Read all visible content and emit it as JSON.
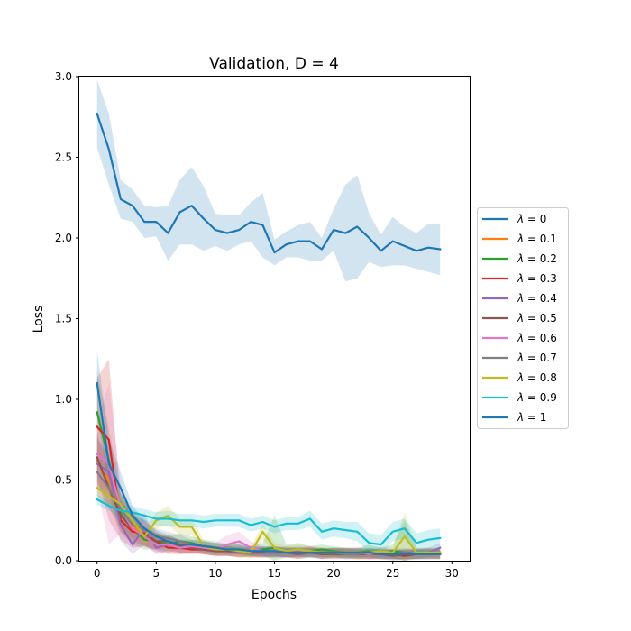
{
  "chart_data": {
    "type": "line",
    "title": "Validation, D = 4",
    "xlabel": "Epochs",
    "ylabel": "Loss",
    "xlim": [
      -1.5,
      31.5
    ],
    "ylim": [
      0,
      3.0
    ],
    "xticks": [
      0,
      5,
      10,
      15,
      20,
      25,
      30
    ],
    "yticks": [
      0.0,
      0.5,
      1.0,
      1.5,
      2.0,
      2.5,
      3.0
    ],
    "xtick_labels": [
      "0",
      "5",
      "10",
      "15",
      "20",
      "25",
      "30"
    ],
    "ytick_labels": [
      "0.0",
      "0.5",
      "1.0",
      "1.5",
      "2.0",
      "2.5",
      "3.0"
    ],
    "legend_position": "center-right, outside plot",
    "legend_prefix": "λ",
    "x": [
      0,
      1,
      2,
      3,
      4,
      5,
      6,
      7,
      8,
      9,
      10,
      11,
      12,
      13,
      14,
      15,
      16,
      17,
      18,
      19,
      20,
      21,
      22,
      23,
      24,
      25,
      26,
      27,
      28,
      29
    ],
    "series": [
      {
        "name": "λ = 0",
        "legend_value": "0",
        "color": "#1f77b4",
        "values": [
          2.77,
          2.55,
          2.24,
          2.2,
          2.1,
          2.1,
          2.03,
          2.16,
          2.2,
          2.12,
          2.05,
          2.03,
          2.05,
          2.1,
          2.08,
          1.91,
          1.96,
          1.98,
          1.98,
          1.93,
          2.05,
          2.03,
          2.07,
          2.0,
          1.92,
          1.98,
          1.95,
          1.92,
          1.94,
          1.93
        ],
        "band": [
          0.21,
          0.22,
          0.12,
          0.1,
          0.1,
          0.09,
          0.17,
          0.2,
          0.24,
          0.2,
          0.1,
          0.11,
          0.09,
          0.12,
          0.2,
          0.08,
          0.08,
          0.1,
          0.12,
          0.07,
          0.13,
          0.3,
          0.32,
          0.15,
          0.1,
          0.15,
          0.12,
          0.11,
          0.15,
          0.16
        ]
      },
      {
        "name": "λ = 0.1",
        "legend_value": "0.1",
        "color": "#ff7f0e",
        "values": [
          0.62,
          0.5,
          0.3,
          0.22,
          0.15,
          0.12,
          0.1,
          0.09,
          0.08,
          0.07,
          0.06,
          0.06,
          0.05,
          0.05,
          0.05,
          0.05,
          0.05,
          0.04,
          0.05,
          0.05,
          0.04,
          0.05,
          0.04,
          0.04,
          0.04,
          0.04,
          0.04,
          0.04,
          0.04,
          0.04
        ],
        "band": [
          0.15,
          0.12,
          0.1,
          0.08,
          0.06,
          0.05,
          0.04,
          0.04,
          0.03,
          0.03,
          0.03,
          0.03,
          0.03,
          0.03,
          0.03,
          0.03,
          0.03,
          0.03,
          0.03,
          0.03,
          0.03,
          0.03,
          0.03,
          0.03,
          0.03,
          0.03,
          0.03,
          0.03,
          0.03,
          0.03
        ]
      },
      {
        "name": "λ = 0.2",
        "legend_value": "0.2",
        "color": "#2ca02c",
        "values": [
          0.92,
          0.62,
          0.3,
          0.2,
          0.13,
          0.12,
          0.1,
          0.12,
          0.11,
          0.09,
          0.08,
          0.07,
          0.07,
          0.06,
          0.07,
          0.08,
          0.06,
          0.07,
          0.06,
          0.07,
          0.06,
          0.05,
          0.05,
          0.06,
          0.05,
          0.06,
          0.05,
          0.05,
          0.05,
          0.05
        ],
        "band": [
          0.25,
          0.2,
          0.12,
          0.1,
          0.06,
          0.05,
          0.05,
          0.05,
          0.04,
          0.04,
          0.04,
          0.03,
          0.03,
          0.03,
          0.04,
          0.2,
          0.04,
          0.04,
          0.03,
          0.03,
          0.03,
          0.03,
          0.03,
          0.04,
          0.03,
          0.04,
          0.2,
          0.03,
          0.03,
          0.03
        ]
      },
      {
        "name": "λ = 0.3",
        "legend_value": "0.3",
        "color": "#d62728",
        "values": [
          0.83,
          0.75,
          0.25,
          0.18,
          0.17,
          0.12,
          0.08,
          0.08,
          0.07,
          0.07,
          0.06,
          0.06,
          0.05,
          0.05,
          0.05,
          0.06,
          0.05,
          0.05,
          0.06,
          0.04,
          0.05,
          0.05,
          0.04,
          0.04,
          0.04,
          0.04,
          0.03,
          0.04,
          0.05,
          0.04
        ],
        "band": [
          0.3,
          0.5,
          0.12,
          0.1,
          0.08,
          0.06,
          0.04,
          0.04,
          0.03,
          0.03,
          0.03,
          0.03,
          0.03,
          0.03,
          0.03,
          0.03,
          0.03,
          0.03,
          0.03,
          0.03,
          0.03,
          0.03,
          0.03,
          0.03,
          0.03,
          0.03,
          0.03,
          0.03,
          0.03,
          0.03
        ]
      },
      {
        "name": "λ = 0.4",
        "legend_value": "0.4",
        "color": "#9467bd",
        "values": [
          0.6,
          0.55,
          0.22,
          0.1,
          0.2,
          0.08,
          0.1,
          0.09,
          0.08,
          0.07,
          0.06,
          0.06,
          0.05,
          0.06,
          0.05,
          0.05,
          0.05,
          0.06,
          0.05,
          0.04,
          0.05,
          0.04,
          0.05,
          0.04,
          0.05,
          0.04,
          0.05,
          0.04,
          0.05,
          0.08
        ],
        "band": [
          0.15,
          0.12,
          0.1,
          0.06,
          0.1,
          0.04,
          0.04,
          0.04,
          0.03,
          0.03,
          0.03,
          0.03,
          0.03,
          0.03,
          0.03,
          0.03,
          0.03,
          0.03,
          0.03,
          0.03,
          0.03,
          0.03,
          0.03,
          0.03,
          0.03,
          0.03,
          0.03,
          0.03,
          0.03,
          0.03
        ]
      },
      {
        "name": "λ = 0.5",
        "legend_value": "0.5",
        "color": "#8c564b",
        "values": [
          0.64,
          0.45,
          0.28,
          0.2,
          0.15,
          0.12,
          0.12,
          0.09,
          0.08,
          0.07,
          0.06,
          0.06,
          0.06,
          0.05,
          0.05,
          0.05,
          0.05,
          0.04,
          0.05,
          0.04,
          0.04,
          0.04,
          0.04,
          0.04,
          0.04,
          0.03,
          0.04,
          0.04,
          0.04,
          0.05
        ],
        "band": [
          0.15,
          0.12,
          0.1,
          0.08,
          0.06,
          0.05,
          0.04,
          0.04,
          0.03,
          0.03,
          0.03,
          0.03,
          0.03,
          0.03,
          0.03,
          0.03,
          0.03,
          0.03,
          0.03,
          0.03,
          0.03,
          0.03,
          0.03,
          0.03,
          0.03,
          0.03,
          0.03,
          0.03,
          0.03,
          0.03
        ]
      },
      {
        "name": "λ = 0.6",
        "legend_value": "0.6",
        "color": "#e377c2",
        "values": [
          0.66,
          0.6,
          0.32,
          0.2,
          0.15,
          0.1,
          0.1,
          0.08,
          0.09,
          0.08,
          0.07,
          0.1,
          0.12,
          0.08,
          0.06,
          0.06,
          0.05,
          0.05,
          0.06,
          0.05,
          0.05,
          0.05,
          0.05,
          0.04,
          0.05,
          0.04,
          0.04,
          0.05,
          0.04,
          0.04
        ],
        "band": [
          0.2,
          0.5,
          0.15,
          0.1,
          0.06,
          0.05,
          0.04,
          0.04,
          0.04,
          0.04,
          0.04,
          0.06,
          0.06,
          0.04,
          0.03,
          0.03,
          0.03,
          0.03,
          0.03,
          0.03,
          0.03,
          0.03,
          0.03,
          0.03,
          0.03,
          0.03,
          0.03,
          0.03,
          0.03,
          0.03
        ]
      },
      {
        "name": "λ = 0.7",
        "legend_value": "0.7",
        "color": "#7f7f7f",
        "values": [
          0.55,
          0.45,
          0.32,
          0.22,
          0.2,
          0.15,
          0.14,
          0.12,
          0.1,
          0.09,
          0.08,
          0.07,
          0.07,
          0.06,
          0.06,
          0.05,
          0.06,
          0.05,
          0.05,
          0.05,
          0.05,
          0.04,
          0.04,
          0.05,
          0.04,
          0.04,
          0.04,
          0.04,
          0.04,
          0.04
        ],
        "band": [
          0.15,
          0.12,
          0.1,
          0.08,
          0.06,
          0.05,
          0.04,
          0.04,
          0.03,
          0.03,
          0.03,
          0.03,
          0.03,
          0.03,
          0.03,
          0.03,
          0.03,
          0.03,
          0.03,
          0.03,
          0.03,
          0.03,
          0.03,
          0.03,
          0.03,
          0.03,
          0.03,
          0.03,
          0.03,
          0.03
        ]
      },
      {
        "name": "λ = 0.8",
        "legend_value": "0.8",
        "color": "#bcbd22",
        "values": [
          0.45,
          0.4,
          0.35,
          0.25,
          0.15,
          0.25,
          0.28,
          0.21,
          0.21,
          0.09,
          0.07,
          0.07,
          0.06,
          0.05,
          0.18,
          0.08,
          0.06,
          0.07,
          0.06,
          0.05,
          0.05,
          0.05,
          0.05,
          0.05,
          0.06,
          0.05,
          0.15,
          0.05,
          0.05,
          0.05
        ],
        "band": [
          0.05,
          0.05,
          0.05,
          0.06,
          0.05,
          0.05,
          0.06,
          0.05,
          0.05,
          0.04,
          0.03,
          0.03,
          0.03,
          0.03,
          0.05,
          0.03,
          0.03,
          0.03,
          0.03,
          0.03,
          0.03,
          0.03,
          0.03,
          0.03,
          0.03,
          0.03,
          0.15,
          0.03,
          0.03,
          0.03
        ]
      },
      {
        "name": "λ = 0.9",
        "legend_value": "0.9",
        "color": "#17becf",
        "values": [
          0.38,
          0.34,
          0.31,
          0.3,
          0.28,
          0.26,
          0.26,
          0.25,
          0.25,
          0.24,
          0.25,
          0.25,
          0.25,
          0.22,
          0.24,
          0.21,
          0.23,
          0.23,
          0.26,
          0.18,
          0.2,
          0.19,
          0.18,
          0.11,
          0.1,
          0.18,
          0.2,
          0.11,
          0.13,
          0.14
        ],
        "band": [
          0.03,
          0.03,
          0.04,
          0.04,
          0.04,
          0.04,
          0.05,
          0.04,
          0.04,
          0.04,
          0.04,
          0.04,
          0.04,
          0.04,
          0.04,
          0.04,
          0.04,
          0.04,
          0.05,
          0.05,
          0.05,
          0.05,
          0.06,
          0.06,
          0.06,
          0.06,
          0.06,
          0.06,
          0.06,
          0.06
        ]
      },
      {
        "name": "λ = 1",
        "legend_value": "1",
        "color": "#1f77b4",
        "values": [
          1.1,
          0.6,
          0.45,
          0.28,
          0.2,
          0.15,
          0.12,
          0.1,
          0.1,
          0.09,
          0.08,
          0.07,
          0.07,
          0.06,
          0.06,
          0.06,
          0.05,
          0.05,
          0.05,
          0.05,
          0.05,
          0.05,
          0.05,
          0.05,
          0.04,
          0.04,
          0.04,
          0.04,
          0.04,
          0.04
        ],
        "band": [
          0.2,
          0.15,
          0.1,
          0.06,
          0.05,
          0.04,
          0.04,
          0.03,
          0.03,
          0.03,
          0.03,
          0.03,
          0.03,
          0.03,
          0.03,
          0.03,
          0.03,
          0.03,
          0.03,
          0.03,
          0.03,
          0.03,
          0.03,
          0.03,
          0.03,
          0.03,
          0.03,
          0.03,
          0.03,
          0.03
        ]
      }
    ]
  }
}
